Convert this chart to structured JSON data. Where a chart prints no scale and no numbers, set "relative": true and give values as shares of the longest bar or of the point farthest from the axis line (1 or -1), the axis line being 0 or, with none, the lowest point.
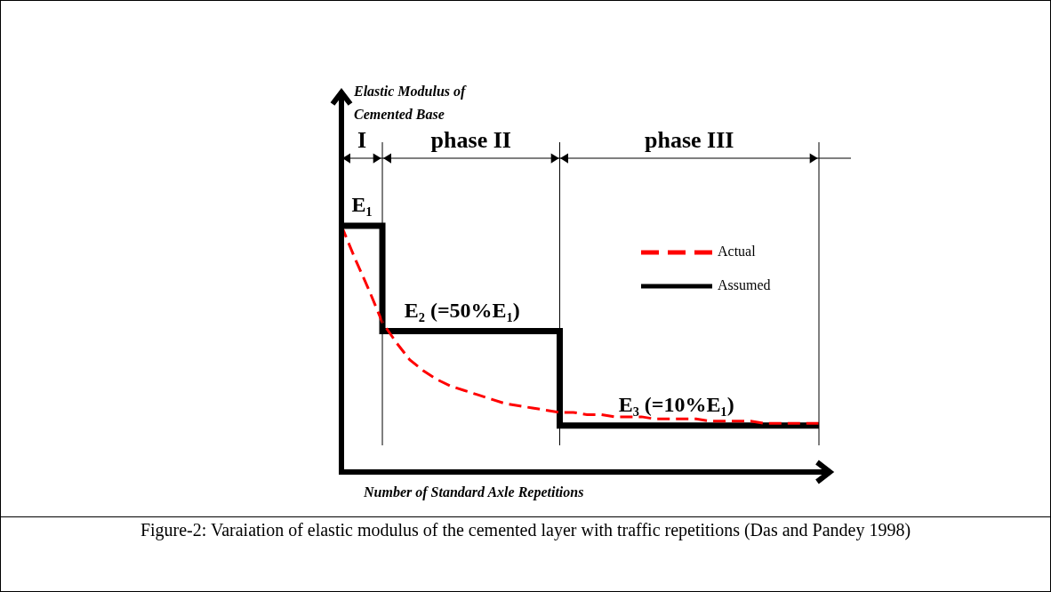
{
  "chart_data": {
    "type": "line",
    "relative": true,
    "xlabel": "Number of Standard Axle Repetitions",
    "grid": "x",
    "legend": "right",
    "marker": "none",
    "categories": [
      null,
      null,
      null,
      null,
      null,
      null,
      null,
      null,
      null,
      null,
      null,
      null,
      null,
      null,
      null,
      null,
      null,
      null,
      null,
      null,
      null,
      null,
      null,
      null,
      null,
      null,
      null,
      null,
      null,
      null,
      null,
      null,
      null,
      null,
      null,
      null
    ],
    "series": [
      {
        "name": "Actual",
        "type": "line",
        "color": "#ff0000",
        "line_style": "dashed",
        "values": [
          1,
          0.85,
          0.71,
          0.56,
          0.47,
          0.39,
          0.34,
          0.3,
          0.27,
          0.25,
          0.23,
          0.21,
          0.19,
          0.18,
          0.17,
          0.16,
          0.15,
          0.15,
          0.14,
          0.14,
          0.13,
          0.13,
          0.13,
          0.12,
          0.12,
          0.12,
          0.12,
          0.11,
          0.11,
          0.11,
          0.11,
          0.1,
          0.1,
          0.1,
          0.1,
          0.1
        ]
      },
      {
        "name": "Assumed",
        "type": "step",
        "color": "#000000",
        "line_style": "solid",
        "values": [
          1,
          1,
          1,
          0.52,
          0.52,
          0.52,
          0.52,
          0.52,
          0.52,
          0.52,
          0.52,
          0.52,
          0.52,
          0.52,
          0.52,
          0.52,
          0.09,
          0.09,
          0.09,
          0.09,
          0.09,
          0.09,
          0.09,
          0.09,
          0.09,
          0.09,
          0.09,
          0.09,
          0.09,
          0.09,
          0.09,
          0.09,
          0.09,
          0.09,
          0.09,
          0.09
        ]
      }
    ],
    "annotations": [
      "I",
      "phase II",
      "phase III",
      "E₁",
      "E₂ (=50%E₁)",
      "E₃ (=10%E₁)",
      "Elastic Modulus of Cemented Base",
      "Figure-2: Varaiation of elastic modulus of the cemented layer with traffic repetitions (Das and Pandey 1998)"
    ]
  }
}
